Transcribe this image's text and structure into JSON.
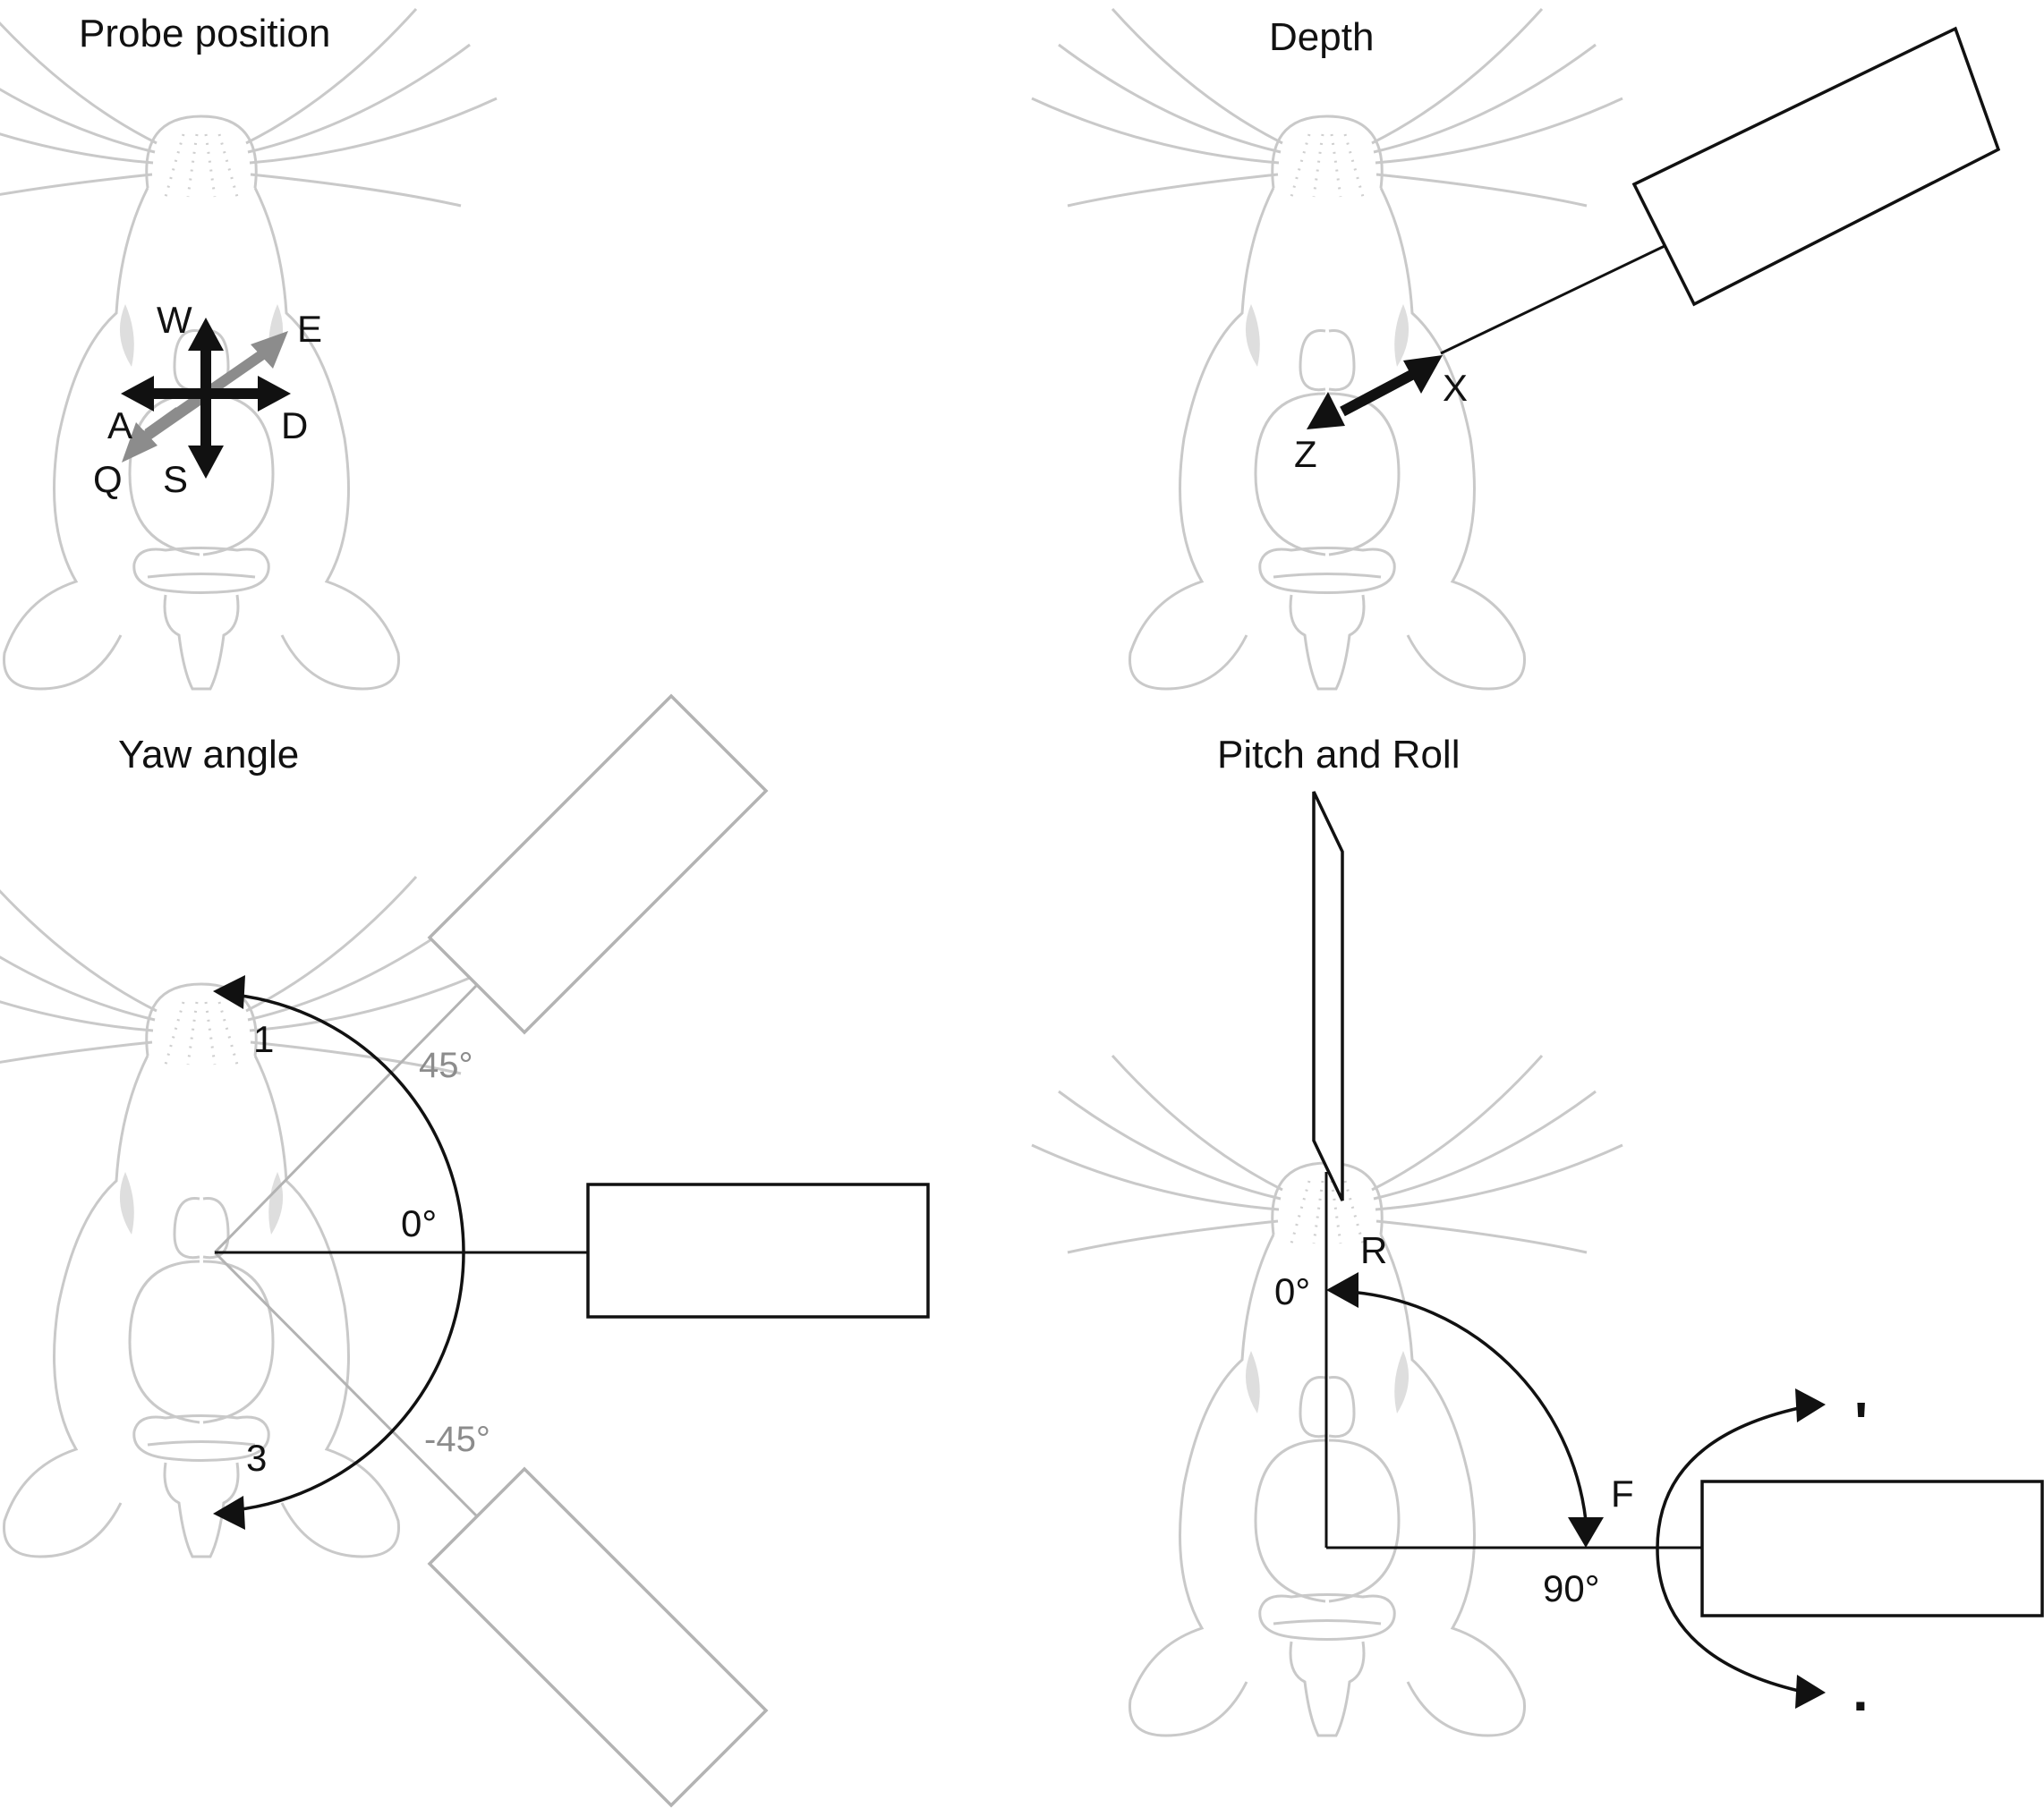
{
  "panels": {
    "probe_position": {
      "title": "Probe position",
      "keys": {
        "up": "W",
        "down": "S",
        "left": "A",
        "right": "D",
        "diag_up": "E",
        "diag_down": "Q"
      }
    },
    "depth": {
      "title": "Depth",
      "keys": {
        "out": "X",
        "in": "Z"
      }
    },
    "yaw_angle": {
      "title": "Yaw angle",
      "angles": {
        "plus": "45°",
        "zero": "0°",
        "minus": "-45°"
      },
      "keys": {
        "ccw": "1",
        "cw": "3"
      }
    },
    "pitch_and_roll": {
      "title": "Pitch and Roll",
      "angles": {
        "zero": "0°",
        "ninety": "90°"
      },
      "keys": {
        "pitch_up": "R",
        "pitch_down": "F",
        "roll_up": "'",
        "roll_down": "."
      }
    }
  },
  "colors": {
    "ink": "#111111",
    "grey_arrow": "#8c8c8c",
    "mouse_outline": "#c9c9c9",
    "probe_grey": "#b3b3b3"
  }
}
